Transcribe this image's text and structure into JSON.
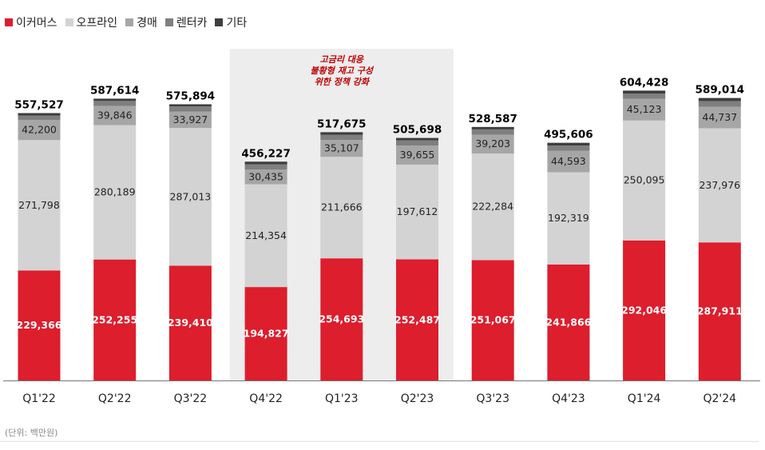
{
  "chart_data": {
    "type": "bar",
    "stacked": true,
    "categories": [
      "Q1'22",
      "Q2'22",
      "Q3'22",
      "Q4'22",
      "Q1'23",
      "Q2'23",
      "Q3'23",
      "Q4'23",
      "Q1'24",
      "Q2'24"
    ],
    "series": [
      {
        "name": "이커머스",
        "color": "#dc1e2d",
        "values": [
          229366,
          252255,
          239410,
          194827,
          254693,
          252487,
          251067,
          241866,
          292046,
          287911
        ]
      },
      {
        "name": "오프라인",
        "color": "#d3d3d3",
        "values": [
          271798,
          280189,
          287013,
          214354,
          211666,
          197612,
          222284,
          192319,
          250095,
          237976
        ]
      },
      {
        "name": "경매",
        "color": "#a6a6a6",
        "values": [
          42200,
          39846,
          33927,
          30435,
          35107,
          39655,
          39203,
          44593,
          45123,
          44737
        ]
      },
      {
        "name": "렌터카",
        "color": "#7f7f7f",
        "values": [
          9000,
          10500,
          11000,
          11000,
          11000,
          11000,
          11000,
          11000,
          11000,
          12000
        ]
      },
      {
        "name": "기타",
        "color": "#3d3d3d",
        "values": [
          5163,
          4824,
          4544,
          5611,
          5209,
          4944,
          5033,
          5828,
          6164,
          6390
        ]
      }
    ],
    "totals": [
      557527,
      587614,
      575894,
      456227,
      517675,
      505698,
      528587,
      495606,
      604428,
      589014
    ],
    "value_labels": {
      "이커머스": [
        "229,366",
        "252,255",
        "239,410",
        "194,827",
        "254,693",
        "252,487",
        "251,067",
        "241,866",
        "292,046",
        "287,911"
      ],
      "오프라인": [
        "271,798",
        "280,189",
        "287,013",
        "214,354",
        "211,666",
        "197,612",
        "222,284",
        "192,319",
        "250,095",
        "237,976"
      ],
      "경매": [
        "42,200",
        "39,846",
        "33,927",
        "30,435",
        "35,107",
        "39,655",
        "39,203",
        "44,593",
        "45,123",
        "44,737"
      ]
    },
    "total_labels": [
      "557,527",
      "587,614",
      "575,894",
      "456,227",
      "517,675",
      "505,698",
      "528,587",
      "495,606",
      "604,428",
      "589,014"
    ],
    "ylim": [
      0,
      700000
    ],
    "grid": false,
    "legend_position": "top-left",
    "highlight": {
      "categories": [
        "Q4'22",
        "Q1'23",
        "Q2'23"
      ],
      "annotation_lines": [
        "고금리 대응",
        "불황형 재고 구성",
        "위한 정책 강화"
      ],
      "annotation_color": "#c00000",
      "background_color": "#ededed"
    },
    "unit_note": "(단위: 백만원)"
  }
}
